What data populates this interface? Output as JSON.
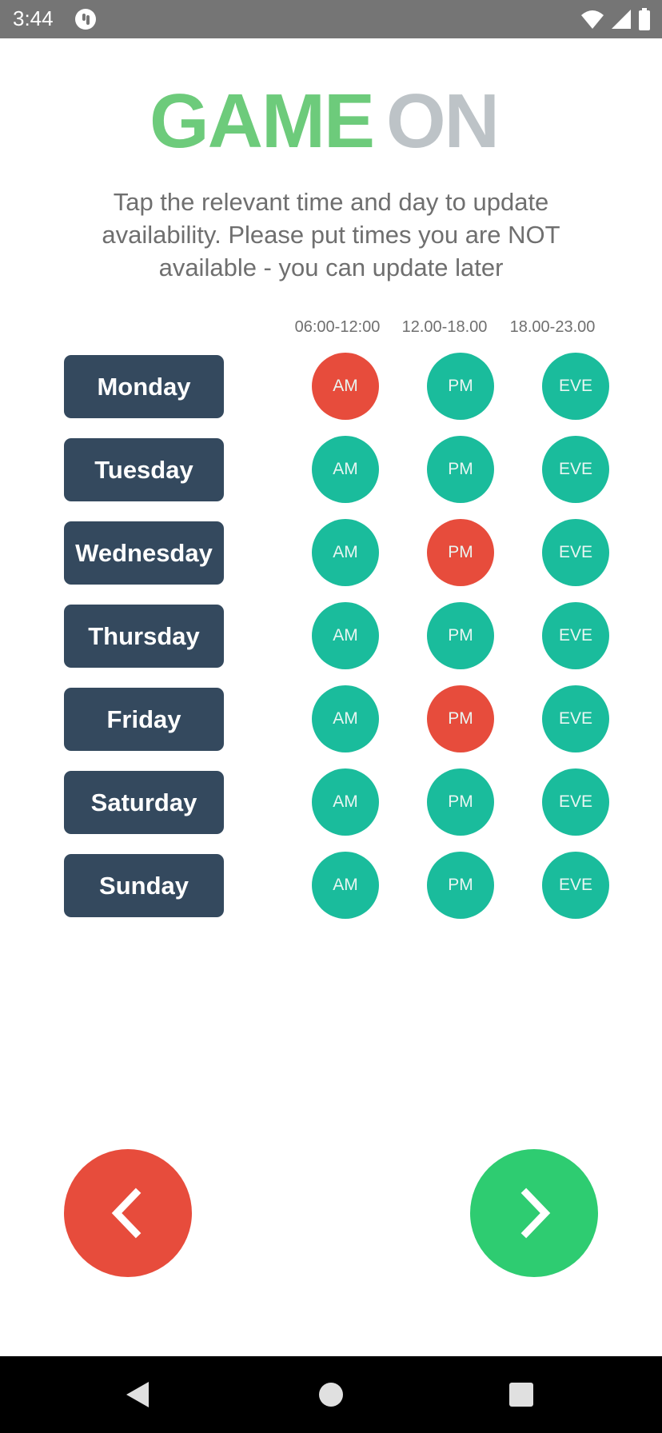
{
  "status_bar": {
    "time": "3:44",
    "icons": [
      "notification-icon",
      "wifi-icon",
      "signal-icon",
      "battery-icon"
    ]
  },
  "logo": {
    "part1": "GAME",
    "part2": "ON",
    "color_part1": "#6dcb7b",
    "color_part2": "#bdc3c7"
  },
  "instructions": "Tap the relevant time and day to update availability. Please put times you are NOT available - you can update later",
  "columns": [
    {
      "label": "06:00-12:00"
    },
    {
      "label": "12.00-18.00"
    },
    {
      "label": "18.00-23.00"
    }
  ],
  "colors": {
    "available": "#1abc9c",
    "unavailable": "#e74c3c",
    "day_button": "#34495e",
    "back": "#e74c3c",
    "next": "#2ecc71"
  },
  "days": [
    {
      "name": "Monday",
      "am": {
        "label": "AM",
        "state": "unavailable"
      },
      "pm": {
        "label": "PM",
        "state": "available"
      },
      "eve": {
        "label": "EVE",
        "state": "available"
      }
    },
    {
      "name": "Tuesday",
      "am": {
        "label": "AM",
        "state": "available"
      },
      "pm": {
        "label": "PM",
        "state": "available"
      },
      "eve": {
        "label": "EVE",
        "state": "available"
      }
    },
    {
      "name": "Wednesday",
      "am": {
        "label": "AM",
        "state": "available"
      },
      "pm": {
        "label": "PM",
        "state": "unavailable"
      },
      "eve": {
        "label": "EVE",
        "state": "available"
      }
    },
    {
      "name": "Thursday",
      "am": {
        "label": "AM",
        "state": "available"
      },
      "pm": {
        "label": "PM",
        "state": "available"
      },
      "eve": {
        "label": "EVE",
        "state": "available"
      }
    },
    {
      "name": "Friday",
      "am": {
        "label": "AM",
        "state": "available"
      },
      "pm": {
        "label": "PM",
        "state": "unavailable"
      },
      "eve": {
        "label": "EVE",
        "state": "available"
      }
    },
    {
      "name": "Saturday",
      "am": {
        "label": "AM",
        "state": "available"
      },
      "pm": {
        "label": "PM",
        "state": "available"
      },
      "eve": {
        "label": "EVE",
        "state": "available"
      }
    },
    {
      "name": "Sunday",
      "am": {
        "label": "AM",
        "state": "available"
      },
      "pm": {
        "label": "PM",
        "state": "available"
      },
      "eve": {
        "label": "EVE",
        "state": "available"
      }
    }
  ],
  "navigation": {
    "back_icon": "chevron-left-icon",
    "next_icon": "chevron-right-icon"
  },
  "android_nav": [
    "back-triangle-icon",
    "home-circle-icon",
    "recents-square-icon"
  ]
}
